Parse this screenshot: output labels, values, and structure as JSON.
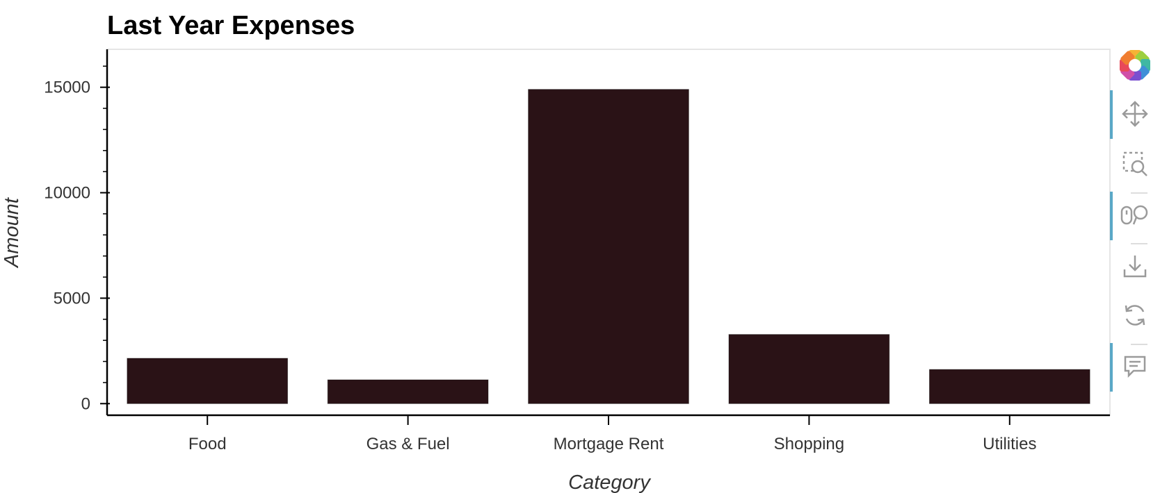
{
  "chart_data": {
    "type": "bar",
    "title": "Last Year Expenses",
    "xlabel": "Category",
    "ylabel": "Amount",
    "categories": [
      "Food",
      "Gas & Fuel",
      "Mortgage Rent",
      "Shopping",
      "Utilities"
    ],
    "values": [
      2150,
      1130,
      14900,
      3280,
      1620
    ],
    "ylim": [
      -550,
      16800
    ],
    "yticks": [
      0,
      5000,
      10000,
      15000
    ],
    "grid": false,
    "bar_color": "#2a1216"
  },
  "toolbar": {
    "items": [
      {
        "name": "bokeh-logo-icon",
        "active": false
      },
      {
        "name": "pan-icon",
        "active": true
      },
      {
        "name": "box-zoom-icon",
        "active": false
      },
      {
        "name": "wheel-zoom-icon",
        "active": true
      },
      {
        "name": "save-icon",
        "active": false
      },
      {
        "name": "reset-icon",
        "active": false
      },
      {
        "name": "hover-icon",
        "active": true
      }
    ]
  }
}
